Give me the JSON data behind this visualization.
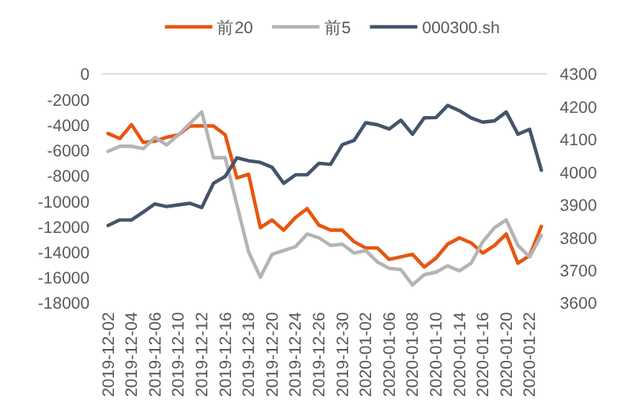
{
  "chart_data": {
    "type": "line",
    "legend": "top",
    "grid": false,
    "categories": [
      "2019-12-02",
      null,
      "2019-12-04",
      null,
      "2019-12-06",
      null,
      "2019-12-10",
      null,
      "2019-12-12",
      null,
      "2019-12-16",
      null,
      "2019-12-18",
      null,
      "2019-12-20",
      null,
      "2019-12-24",
      null,
      "2019-12-26",
      null,
      "2019-12-30",
      null,
      "2020-01-02",
      null,
      "2020-01-06",
      null,
      "2020-01-08",
      null,
      "2020-01-10",
      null,
      "2020-01-14",
      null,
      "2020-01-16",
      null,
      "2020-01-20",
      null,
      "2020-01-22",
      null
    ],
    "ylim": [
      -18000,
      0
    ],
    "yticks": [
      -18000,
      -16000,
      -14000,
      -12000,
      -10000,
      -8000,
      -6000,
      -4000,
      -2000,
      0
    ],
    "y2lim": [
      3600,
      4300
    ],
    "y2ticks": [
      3600,
      3700,
      3800,
      3900,
      4000,
      4100,
      4200,
      4300
    ],
    "series": [
      {
        "name": "前20",
        "color": "#e8550f",
        "values": [
          -4700,
          -5100,
          -4000,
          -5400,
          -5300,
          -5000,
          -4800,
          -4100,
          -4100,
          -4100,
          -4800,
          -8200,
          -7900,
          -12100,
          -11500,
          -12300,
          -11300,
          -10600,
          -11900,
          -12300,
          -12300,
          -13200,
          -13700,
          -13700,
          -14600,
          -14400,
          -14200,
          -15200,
          -14500,
          -13400,
          -12900,
          -13300,
          -14100,
          -13500,
          -12600,
          -14900,
          -14300,
          -12000
        ]
      },
      {
        "name": "前5",
        "color": "#b4b4b4",
        "values": [
          -6100,
          -5700,
          -5700,
          -5900,
          -5000,
          -5600,
          -4800,
          -3900,
          -3000,
          -6600,
          -6600,
          -10300,
          -14000,
          -16000,
          -14200,
          -13900,
          -13600,
          -12600,
          -12900,
          -13500,
          -13400,
          -14100,
          -13900,
          -14800,
          -15300,
          -15400,
          -16600,
          -15800,
          -15600,
          -15100,
          -15500,
          -14900,
          -13200,
          -12100,
          -11500,
          -13500,
          -14400,
          -12700
        ]
      },
      {
        "name": "000300.sh",
        "color": "#44546a",
        "axis": "y2",
        "values": [
          3836,
          3853,
          3853,
          3877,
          3902,
          3894,
          3899,
          3904,
          3891,
          3965,
          3986,
          4043,
          4034,
          4029,
          4014,
          3965,
          3991,
          3991,
          4026,
          4023,
          4083,
          4096,
          4150,
          4144,
          4131,
          4158,
          4115,
          4165,
          4166,
          4203,
          4187,
          4165,
          4152,
          4156,
          4183,
          4115,
          4130,
          4005
        ]
      }
    ]
  }
}
